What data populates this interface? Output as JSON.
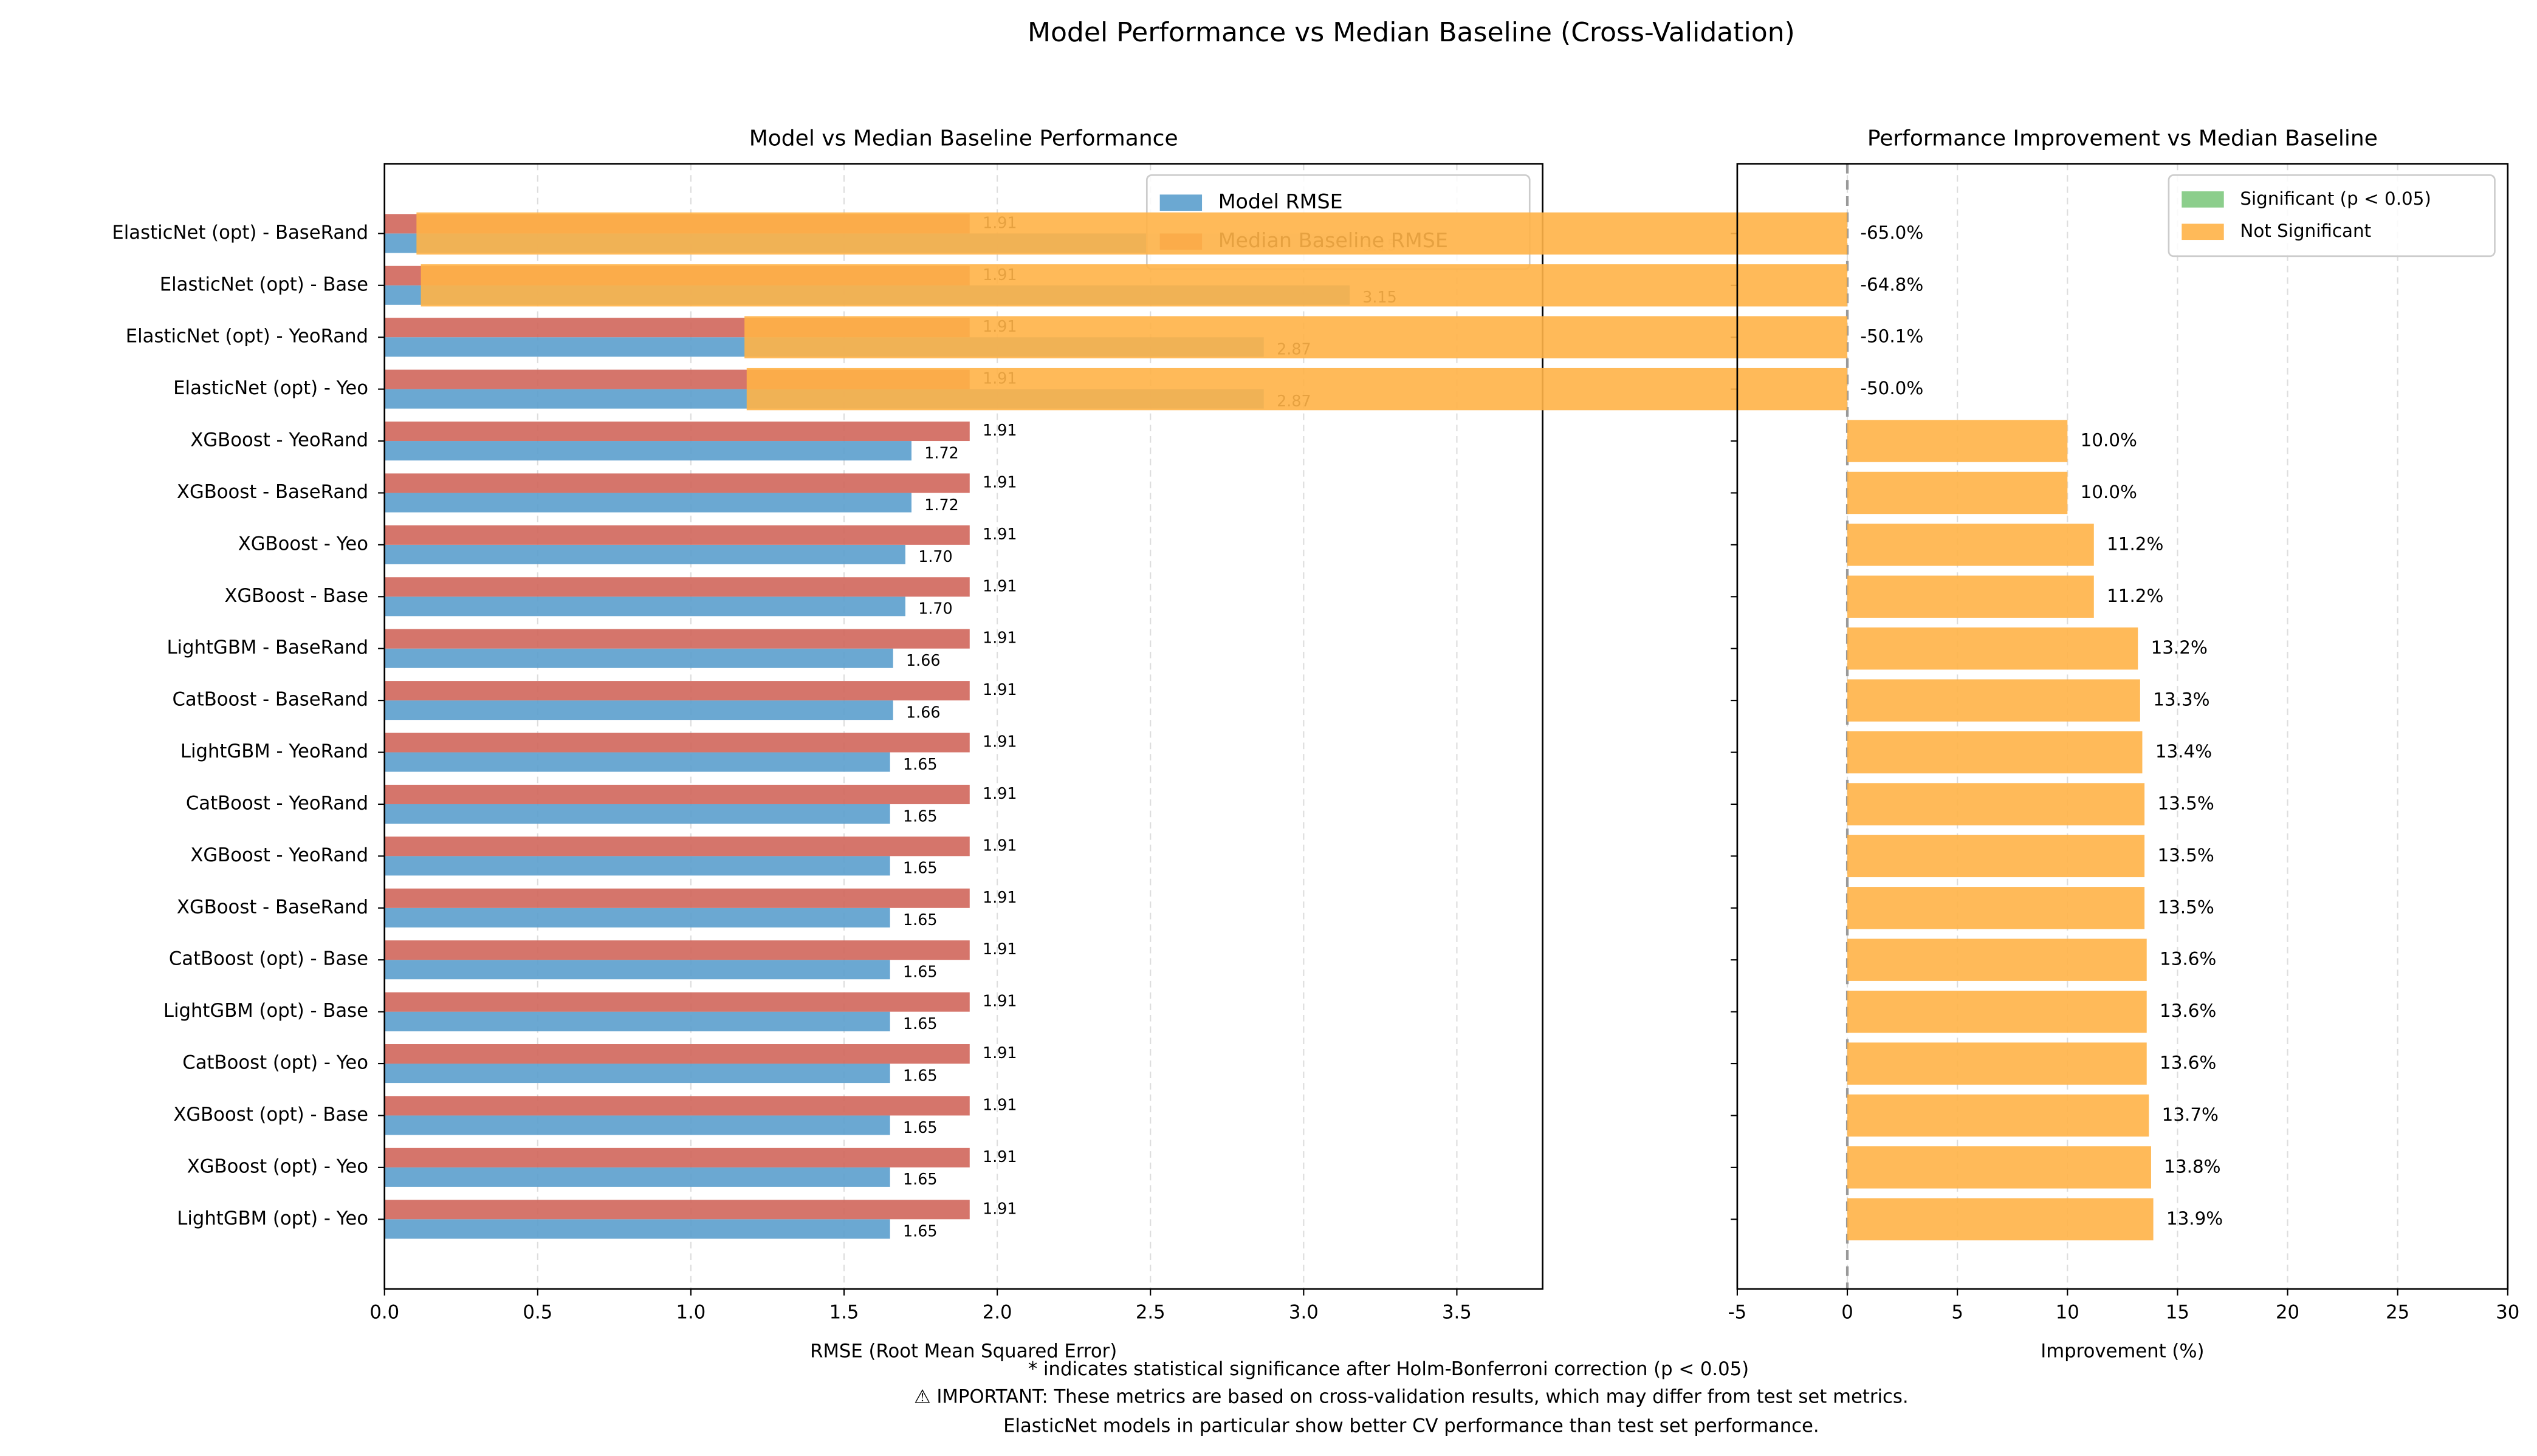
{
  "title": "Model Performance vs Median Baseline (Cross-Validation)",
  "footnotes": [
    "* indicates statistical significance after Holm-Bonferroni correction (p < 0.05)",
    "⚠ IMPORTANT: These metrics are based on cross-validation results, which may differ from test set metrics.",
    "ElasticNet models in particular show better CV performance than test set performance."
  ],
  "chart_data": [
    {
      "type": "barh",
      "title": "Model vs Median Baseline Performance",
      "xlabel": "RMSE (Root Mean Squared Error)",
      "categories": [
        "ElasticNet (opt) - BaseRand",
        "ElasticNet (opt) - Base",
        "ElasticNet (opt) - YeoRand",
        "ElasticNet (opt) - Yeo",
        "XGBoost - YeoRand",
        "XGBoost - BaseRand",
        "XGBoost - Yeo",
        "XGBoost - Base",
        "LightGBM - BaseRand",
        "CatBoost - BaseRand",
        "LightGBM - YeoRand",
        "CatBoost - YeoRand",
        "XGBoost - YeoRand",
        "XGBoost - BaseRand",
        "CatBoost (opt) - Base",
        "LightGBM (opt) - Base",
        "CatBoost (opt) - Yeo",
        "XGBoost (opt) - Base",
        "XGBoost (opt) - Yeo",
        "LightGBM (opt) - Yeo"
      ],
      "series": [
        {
          "name": "Model RMSE",
          "color": "#5b9fcd",
          "values": [
            3.15,
            3.15,
            2.87,
            2.87,
            1.72,
            1.72,
            1.7,
            1.7,
            1.66,
            1.66,
            1.65,
            1.65,
            1.65,
            1.65,
            1.65,
            1.65,
            1.65,
            1.65,
            1.65,
            1.65
          ],
          "value_labels": [
            "3.15",
            "3.15",
            "2.87",
            "2.87",
            "1.72",
            "1.72",
            "1.70",
            "1.70",
            "1.66",
            "1.66",
            "1.65",
            "1.65",
            "1.65",
            "1.65",
            "1.65",
            "1.65",
            "1.65",
            "1.65",
            "1.65",
            "1.65"
          ]
        },
        {
          "name": "Median Baseline RMSE",
          "color": "#d0665b",
          "values": [
            1.91,
            1.91,
            1.91,
            1.91,
            1.91,
            1.91,
            1.91,
            1.91,
            1.91,
            1.91,
            1.91,
            1.91,
            1.91,
            1.91,
            1.91,
            1.91,
            1.91,
            1.91,
            1.91,
            1.91
          ]
        }
      ],
      "xlim": [
        0,
        3.78
      ],
      "xticks": [
        {
          "value": 0,
          "label": "0.0"
        },
        {
          "value": 0.5,
          "label": "0.5"
        },
        {
          "value": 1,
          "label": "1.0"
        },
        {
          "value": 1.5,
          "label": "1.5"
        },
        {
          "value": 2,
          "label": "2.0"
        },
        {
          "value": 2.5,
          "label": "2.5"
        },
        {
          "value": 3,
          "label": "3.0"
        },
        {
          "value": 3.5,
          "label": "3.5"
        }
      ],
      "grid": true,
      "legend": "upper right"
    },
    {
      "type": "barh",
      "title": "Performance Improvement vs Median Baseline",
      "xlabel": "Improvement (%)",
      "series": [
        {
          "name": "Significant (p < 0.05)",
          "color": "#7fc97f",
          "values": [
            null,
            null,
            null,
            null,
            null,
            null,
            null,
            null,
            null,
            null,
            null,
            null,
            null,
            null,
            null,
            null,
            null,
            null,
            null,
            null
          ]
        },
        {
          "name": "Not Significant",
          "color": "#ffb347",
          "values": [
            -65.0,
            -64.8,
            -50.1,
            -50.0,
            10.0,
            10.0,
            11.2,
            11.2,
            13.2,
            13.3,
            13.4,
            13.5,
            13.5,
            13.5,
            13.6,
            13.6,
            13.6,
            13.7,
            13.8,
            13.9
          ],
          "value_labels": [
            "-65.0%",
            "-64.8%",
            "-50.1%",
            "-50.0%",
            "10.0%",
            "10.0%",
            "11.2%",
            "11.2%",
            "13.2%",
            "13.3%",
            "13.4%",
            "13.5%",
            "13.5%",
            "13.5%",
            "13.6%",
            "13.6%",
            "13.6%",
            "13.7%",
            "13.8%",
            "13.9%"
          ]
        }
      ],
      "xlim": [
        -5,
        30
      ],
      "xticks": [
        -5,
        0,
        5,
        10,
        15,
        20,
        25,
        30
      ],
      "grid": true,
      "zero_line": true,
      "legend": "upper right"
    }
  ]
}
